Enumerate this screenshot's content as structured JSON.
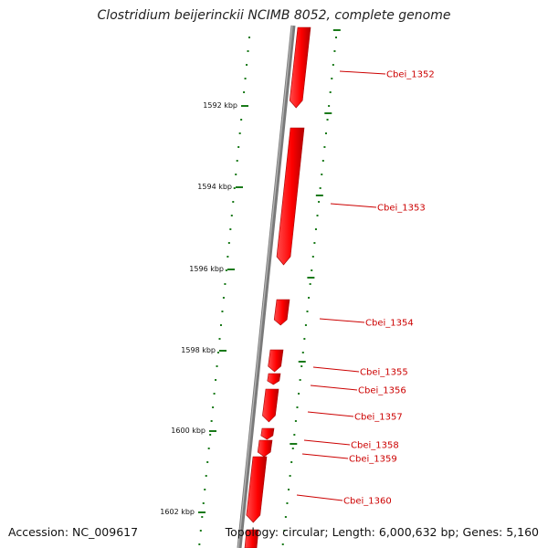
{
  "title": "Clostridium beijerinckii NCIMB 8052, complete genome",
  "accession": "Accession: NC_009617",
  "topology": "Topology: circular; Length: 6,000,632 bp; Genes: 5,160",
  "colors": {
    "backbone": "#7a7a7a",
    "gene": "#ff1a1a",
    "gene_shade": "#a80000",
    "tick": "#1a7a1a",
    "label": "#cc0000"
  },
  "kbp_ticks": [
    {
      "label": "1592 kbp",
      "kbp": 1592
    },
    {
      "label": "1594 kbp",
      "kbp": 1594
    },
    {
      "label": "1596 kbp",
      "kbp": 1596
    },
    {
      "label": "1598 kbp",
      "kbp": 1598
    },
    {
      "label": "1600 kbp",
      "kbp": 1600
    },
    {
      "label": "1602 kbp",
      "kbp": 1602
    }
  ],
  "genes": [
    {
      "label": "Cbei_1352"
    },
    {
      "label": "Cbei_1353"
    },
    {
      "label": "Cbei_1354"
    },
    {
      "label": "Cbei_1355"
    },
    {
      "label": "Cbei_1356"
    },
    {
      "label": "Cbei_1357"
    },
    {
      "label": "Cbei_1358"
    },
    {
      "label": "Cbei_1359"
    },
    {
      "label": "Cbei_1360"
    }
  ]
}
